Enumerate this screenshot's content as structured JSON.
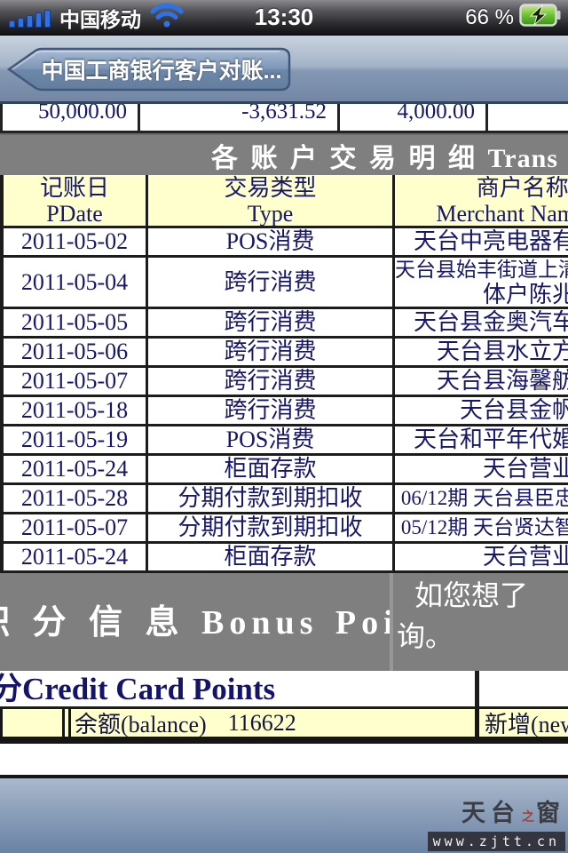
{
  "status_bar": {
    "carrier": "中国移动",
    "time": "13:30",
    "battery_percent": "66 %"
  },
  "nav_bar": {
    "back_button_label": "中国工商银行客户对账..."
  },
  "summary_row": {
    "values": [
      "50,000.00",
      "-3,631.52",
      "4,000.00",
      ""
    ]
  },
  "transactions_section": {
    "banner_title": "各 账 户 交 易 明 细 Trans",
    "headers": {
      "date_zh": "记账日",
      "date_en": "PDate",
      "type_zh": "交易类型",
      "type_en": "Type",
      "merchant_zh": "商户名称/",
      "merchant_en": "Merchant Nam"
    },
    "rows": [
      {
        "date": "2011-05-02",
        "type": "POS消费",
        "merchant": [
          "天台中亮电器有"
        ]
      },
      {
        "date": "2011-05-04",
        "type": "跨行消费",
        "merchant": [
          "天台县始丰街道上清",
          "体户陈兆"
        ]
      },
      {
        "date": "2011-05-05",
        "type": "跨行消费",
        "merchant": [
          "天台县金奥汽车"
        ]
      },
      {
        "date": "2011-05-06",
        "type": "跨行消费",
        "merchant": [
          "天台县水立方"
        ]
      },
      {
        "date": "2011-05-07",
        "type": "跨行消费",
        "merchant": [
          "天台县海馨舫"
        ]
      },
      {
        "date": "2011-05-18",
        "type": "跨行消费",
        "merchant": [
          "天台县金帆"
        ]
      },
      {
        "date": "2011-05-19",
        "type": "POS消费",
        "merchant": [
          "天台和平年代婚"
        ]
      },
      {
        "date": "2011-05-24",
        "type": "柜面存款",
        "merchant": [
          "天台营业"
        ]
      },
      {
        "date": "2011-05-28",
        "type": "分期付款到期扣收",
        "merchant": [
          "06/12期 天台县臣忠"
        ]
      },
      {
        "date": "2011-05-07",
        "type": "分期付款到期扣收",
        "merchant": [
          "05/12期 天台贤达智"
        ]
      },
      {
        "date": "2011-05-24",
        "type": "柜面存款",
        "merchant": [
          "天台营业"
        ]
      }
    ]
  },
  "bonus_section": {
    "title": "积 分 信 息 Bonus Points",
    "note_line1": "如您想了",
    "note_line2": "询。"
  },
  "points_section": {
    "heading": "分Credit Card Points",
    "balance_label": "余额(balance)",
    "balance_value": "116622",
    "new_label": "新增(new)"
  },
  "watermark": {
    "name_part1": "天台",
    "name_part2": "之",
    "name_part3": "窗",
    "url": "www.zjtt.cn"
  },
  "colors": {
    "nav_blue": "#7287a5",
    "table_text_navy": "#16166b",
    "header_yellow": "#ffffcd",
    "banner_gray": "#7f7f7f",
    "battery_green": "#6cc234",
    "signal_blue": "#2e72e8"
  }
}
